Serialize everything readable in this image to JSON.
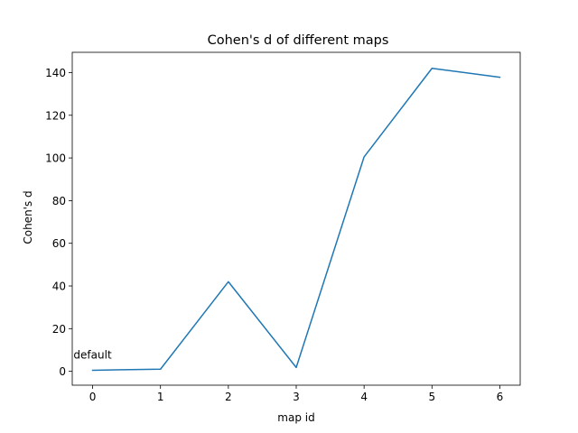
{
  "chart_data": {
    "type": "line",
    "title": "Cohen's d of different maps",
    "xlabel": "map id",
    "ylabel": "Cohen's d",
    "x": [
      0,
      1,
      2,
      3,
      4,
      5,
      6
    ],
    "series": [
      {
        "values": [
          0.5,
          1.0,
          42.0,
          1.8,
          100.5,
          142.0,
          137.8
        ],
        "color": "#1f77b4"
      }
    ],
    "xticks": [
      "0",
      "1",
      "2",
      "3",
      "4",
      "5",
      "6"
    ],
    "yticks": [
      "0",
      "20",
      "40",
      "60",
      "80",
      "100",
      "120",
      "140"
    ],
    "xlim": [
      -0.3,
      6.3
    ],
    "ylim": [
      -6.5,
      149.5
    ],
    "grid": false,
    "annotations": [
      {
        "text": "default",
        "x": 0,
        "y": 0.5
      }
    ]
  }
}
